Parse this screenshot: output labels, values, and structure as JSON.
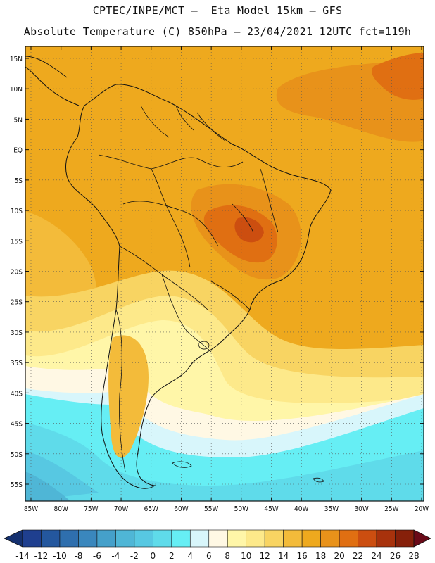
{
  "header": {
    "line1": "CPTEC/INPE/MCT –  Eta Model 15km – GFS",
    "line2": "Absolute Temperature (C) 850hPa – 23/04/2021 12UTC fct=119h"
  },
  "map": {
    "lat_labels": [
      "15N",
      "10N",
      "5N",
      "EQ",
      "5S",
      "10S",
      "15S",
      "20S",
      "25S",
      "30S",
      "35S",
      "40S",
      "45S",
      "50S",
      "55S"
    ],
    "lon_labels": [
      "85W",
      "80W",
      "75W",
      "70W",
      "65W",
      "60W",
      "55W",
      "50W",
      "45W",
      "40W",
      "35W",
      "30W",
      "25W",
      "20W"
    ]
  },
  "colorbar": {
    "labels": [
      "-14",
      "-12",
      "-10",
      "-8",
      "-6",
      "-4",
      "-2",
      "0",
      "2",
      "4",
      "6",
      "8",
      "10",
      "12",
      "14",
      "16",
      "18",
      "20",
      "22",
      "24",
      "26",
      "28"
    ],
    "colors": [
      "#1f3f8f",
      "#24579e",
      "#2f6fae",
      "#3a87bd",
      "#45a0ca",
      "#4fb6d6",
      "#57c8e2",
      "#5fdbea",
      "#66eef4",
      "#d8f6fb",
      "#fff8e4",
      "#fff6a8",
      "#fde98a",
      "#f8d462",
      "#f3bb3a",
      "#eea91e",
      "#e8921a",
      "#e06f12",
      "#cc4e10",
      "#a8320c",
      "#86200a"
    ],
    "under_color": "#15306f",
    "over_color": "#6a0a18"
  },
  "palette": {
    "ocean": "#eea91e",
    "land": "#eea91e",
    "warm": "#e8921a",
    "hot": "#e06f12",
    "very_hot": "#cc4e10",
    "mild": "#f3bb3a",
    "light": "#f8d462",
    "pale": "#fde98a",
    "cream": "#fff6a8",
    "offwhite": "#fff8e4",
    "icy": "#d8f6fb",
    "aqua": "#66eef4",
    "cyan": "#5fdbea",
    "blue1": "#57c8e2",
    "blue2": "#4fb6d6",
    "line": "#111111",
    "grid": "#555555"
  }
}
